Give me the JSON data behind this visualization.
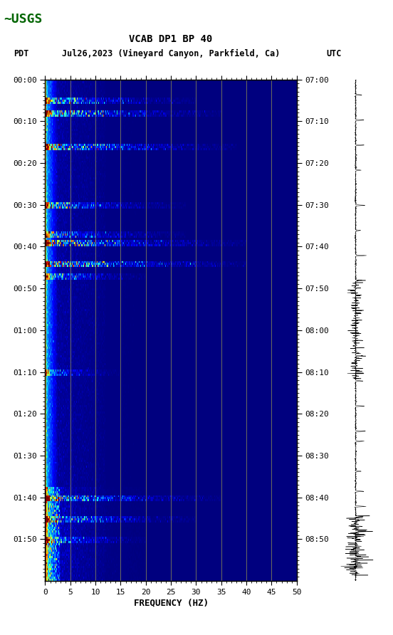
{
  "title_line1": "VCAB DP1 BP 40",
  "title_line2": "Jul26,2023 (Vineyard Canyon, Parkfield, Ca)",
  "title_left": "PDT",
  "title_right": "UTC",
  "xlabel": "FREQUENCY (HZ)",
  "freq_min": 0,
  "freq_max": 50,
  "freq_ticks": [
    0,
    5,
    10,
    15,
    20,
    25,
    30,
    35,
    40,
    45,
    50
  ],
  "time_left_labels": [
    "00:00",
    "00:10",
    "00:20",
    "00:30",
    "00:40",
    "00:50",
    "01:00",
    "01:10",
    "01:20",
    "01:30",
    "01:40",
    "01:50"
  ],
  "time_right_labels": [
    "07:00",
    "07:10",
    "07:20",
    "07:30",
    "07:40",
    "07:50",
    "08:00",
    "08:10",
    "08:20",
    "08:30",
    "08:40",
    "08:50"
  ],
  "n_time_steps": 240,
  "n_freq_bins": 500,
  "bg_color": "#ffffff",
  "spectrogram_cmap": "jet",
  "vertical_lines_freq": [
    5,
    10,
    15,
    20,
    25,
    30,
    35,
    40,
    45
  ],
  "vertical_line_color": "#888855",
  "usgs_color": "#006400",
  "figsize": [
    5.52,
    8.92
  ],
  "dpi": 100
}
